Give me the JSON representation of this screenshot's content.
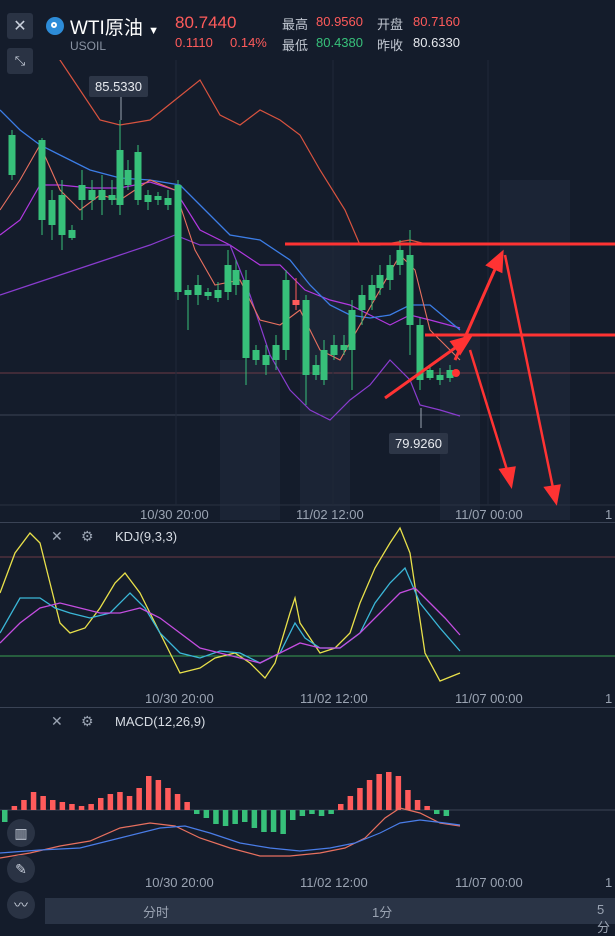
{
  "symbol": {
    "name": "WTI原油",
    "code": "USOIL",
    "price": "80.7440",
    "change": "0.1110",
    "change_pct": "0.14%"
  },
  "quote": {
    "high_label": "最高",
    "high": "80.9560",
    "open_label": "开盘",
    "open": "80.7160",
    "low_label": "最低",
    "low": "80.4380",
    "prev_label": "昨收",
    "prev_close": "80.6330"
  },
  "main_chart": {
    "max_tag": "85.5330",
    "min_tag": "79.9260",
    "time_ticks": [
      "10/30 20:00",
      "11/02 12:00",
      "11/07 00:00",
      "1"
    ]
  },
  "kdj": {
    "title": "KDJ(9,3,3)",
    "time_ticks": [
      "10/30 20:00",
      "11/02 12:00",
      "11/07 00:00",
      "1"
    ]
  },
  "macd": {
    "title": "MACD(12,26,9)",
    "time_ticks": [
      "10/30 20:00",
      "11/02 12:00",
      "11/07 00:00",
      "1"
    ]
  },
  "tabs": {
    "minute": "分时",
    "one_min": "1分",
    "five_min": "5分"
  },
  "icons": [
    "close-icon",
    "collapse-icon",
    "chevron-down-icon",
    "settings-icon",
    "candlestick-icon",
    "pencil-icon",
    "indicator-icon"
  ],
  "colors": {
    "up": "#ff5b5b",
    "down": "#37c07a",
    "background": "#141c2b",
    "annotation": "#ff3333"
  }
}
